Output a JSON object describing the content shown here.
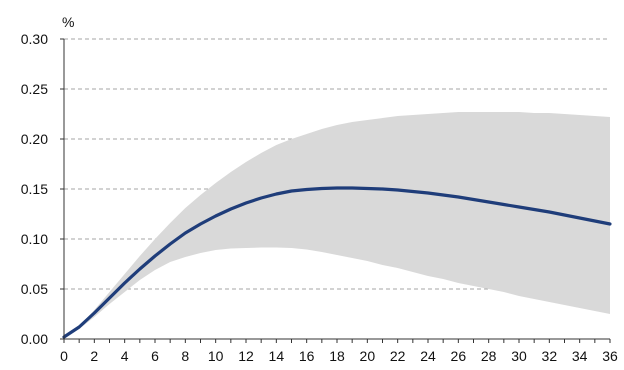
{
  "chart_data": {
    "type": "line",
    "unit_label": "%",
    "x": [
      0,
      1,
      2,
      3,
      4,
      5,
      6,
      7,
      8,
      9,
      10,
      11,
      12,
      13,
      14,
      15,
      16,
      17,
      18,
      19,
      20,
      21,
      22,
      23,
      24,
      25,
      26,
      27,
      28,
      29,
      30,
      31,
      32,
      33,
      34,
      35,
      36
    ],
    "series": [
      {
        "color": "#1f3d7a",
        "values": [
          0.002,
          0.012,
          0.026,
          0.041,
          0.056,
          0.07,
          0.083,
          0.095,
          0.106,
          0.115,
          0.123,
          0.13,
          0.136,
          0.141,
          0.145,
          0.148,
          0.1495,
          0.1505,
          0.151,
          0.151,
          0.1505,
          0.15,
          0.149,
          0.1475,
          0.146,
          0.144,
          0.142,
          0.1395,
          0.137,
          0.1345,
          0.132,
          0.1295,
          0.127,
          0.124,
          0.121,
          0.118,
          0.115
        ]
      }
    ],
    "band": {
      "color": "#d9d9d9",
      "upper": [
        0.002,
        0.013,
        0.029,
        0.047,
        0.065,
        0.083,
        0.1,
        0.116,
        0.131,
        0.144,
        0.156,
        0.167,
        0.177,
        0.186,
        0.194,
        0.2,
        0.205,
        0.21,
        0.214,
        0.217,
        0.219,
        0.221,
        0.223,
        0.224,
        0.225,
        0.226,
        0.227,
        0.227,
        0.227,
        0.227,
        0.227,
        0.226,
        0.226,
        0.225,
        0.224,
        0.223,
        0.222
      ],
      "lower": [
        0.002,
        0.01,
        0.022,
        0.035,
        0.047,
        0.059,
        0.069,
        0.077,
        0.082,
        0.086,
        0.089,
        0.0905,
        0.091,
        0.0915,
        0.0915,
        0.091,
        0.0895,
        0.087,
        0.084,
        0.081,
        0.078,
        0.074,
        0.071,
        0.067,
        0.063,
        0.06,
        0.056,
        0.053,
        0.05,
        0.047,
        0.043,
        0.04,
        0.037,
        0.034,
        0.031,
        0.028,
        0.025
      ]
    },
    "y_ticks": [
      "0.00",
      "0.05",
      "0.10",
      "0.15",
      "0.20",
      "0.25",
      "0.30"
    ],
    "x_ticks": [
      "0",
      "2",
      "4",
      "6",
      "8",
      "10",
      "12",
      "14",
      "16",
      "18",
      "20",
      "22",
      "24",
      "26",
      "28",
      "30",
      "32",
      "34",
      "36"
    ],
    "xlim": [
      0,
      36
    ],
    "ylim": [
      0,
      0.3
    ],
    "grid": "horizontal-dashed",
    "axis_color": "#333333",
    "grid_color": "#a6a6a6"
  }
}
